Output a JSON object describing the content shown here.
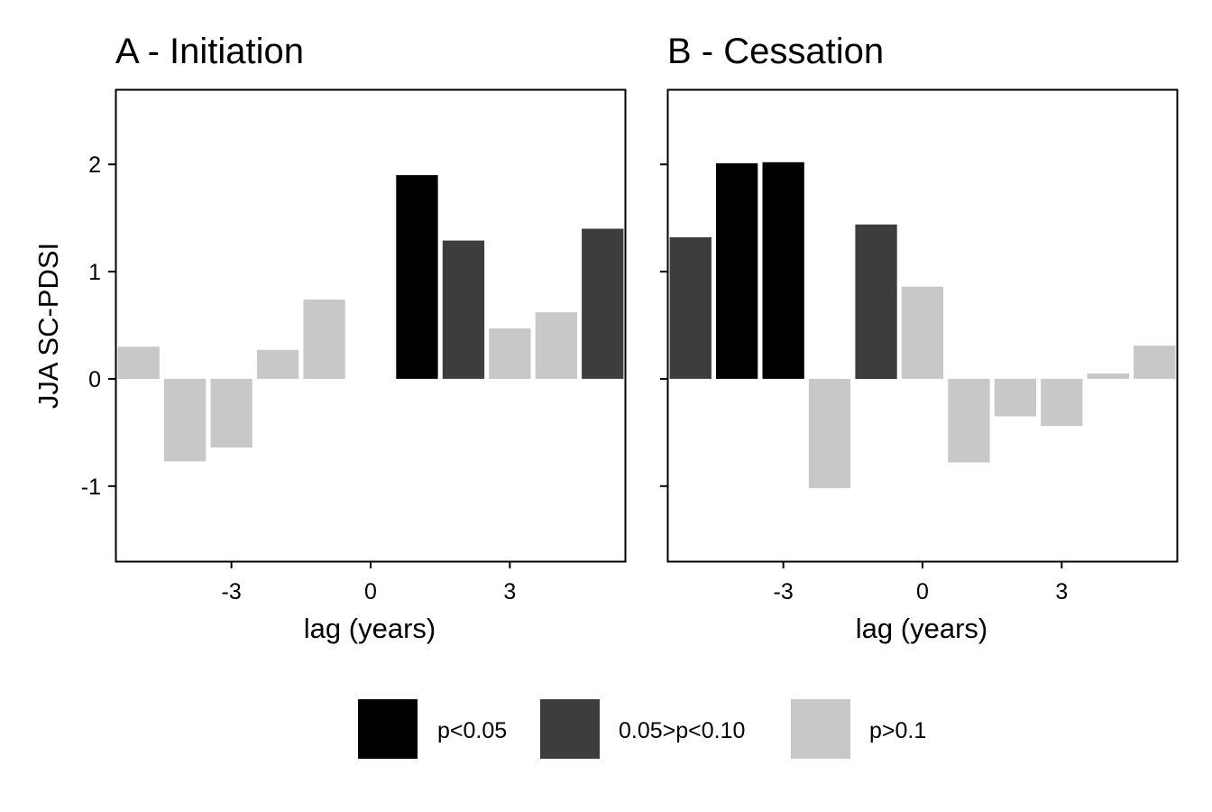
{
  "chart_data": [
    {
      "type": "bar",
      "title": "A - Initiation",
      "xlabel": "lag (years)",
      "ylabel": "JJA SC-PDSI",
      "x": [
        -5,
        -4,
        -3,
        -2,
        -1,
        1,
        2,
        3,
        4,
        5
      ],
      "values": [
        0.3,
        -0.77,
        -0.64,
        0.27,
        0.74,
        1.9,
        1.29,
        0.47,
        0.62,
        1.4
      ],
      "significance": [
        "p>0.1",
        "p>0.1",
        "p>0.1",
        "p>0.1",
        "p>0.1",
        "p<0.05",
        "0.05>p<0.10",
        "p>0.1",
        "p>0.1",
        "0.05>p<0.10"
      ],
      "xlim": [
        -5.5,
        5.5
      ],
      "ylim": [
        -1.7,
        2.7
      ],
      "xticks": [
        -3,
        0,
        3
      ],
      "xtick_labels": [
        "-3",
        "0",
        "3"
      ],
      "yticks": [
        -1,
        0,
        1,
        2
      ],
      "ytick_labels": [
        "-1",
        "0",
        "1",
        "2"
      ]
    },
    {
      "type": "bar",
      "title": "B - Cessation",
      "xlabel": "lag (years)",
      "ylabel": "",
      "x": [
        -5,
        -4,
        -3,
        -2,
        -1,
        0,
        1,
        2,
        3,
        4,
        5
      ],
      "values": [
        1.32,
        2.01,
        2.02,
        -1.02,
        1.44,
        0.86,
        -0.78,
        -0.35,
        -0.44,
        0.05,
        0.31
      ],
      "significance": [
        "0.05>p<0.10",
        "p<0.05",
        "p<0.05",
        "p>0.1",
        "0.05>p<0.10",
        "p>0.1",
        "p>0.1",
        "p>0.1",
        "p>0.1",
        "p>0.1",
        "p>0.1"
      ],
      "xlim": [
        -5.5,
        5.5
      ],
      "ylim": [
        -1.7,
        2.7
      ],
      "xticks": [
        -3,
        0,
        3
      ],
      "xtick_labels": [
        "-3",
        "0",
        "3"
      ],
      "yticks": [
        -1,
        0,
        1,
        2
      ],
      "ytick_labels": []
    }
  ],
  "legend": {
    "position": "bottom",
    "items": [
      {
        "key": "p<0.05",
        "label": "p<0.05",
        "color": "#000000"
      },
      {
        "key": "0.05>p<0.10",
        "label": "0.05>p<0.10",
        "color": "#3d3d3d"
      },
      {
        "key": "p>0.1",
        "label": "p>0.1",
        "color": "#c8c8c8"
      }
    ]
  },
  "style": {
    "axis_color": "#000000",
    "background": "#ffffff",
    "grid": false
  }
}
